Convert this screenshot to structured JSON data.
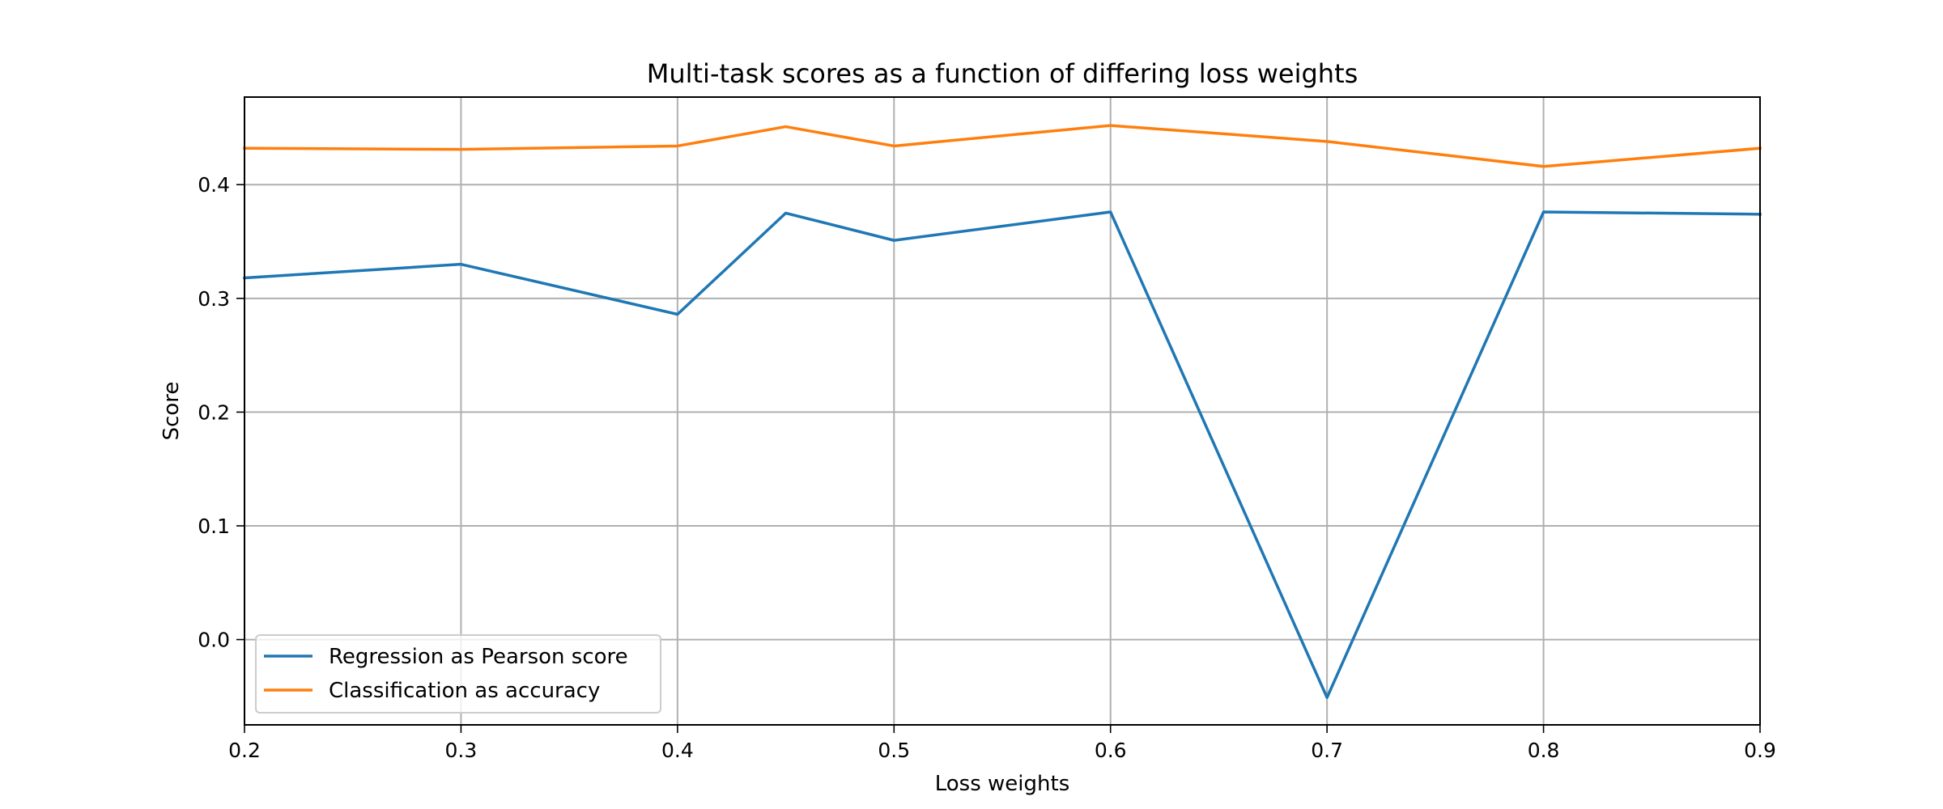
{
  "chart_data": {
    "type": "line",
    "title": "Multi-task scores as a function of differing loss weights",
    "xlabel": "Loss weights",
    "ylabel": "Score",
    "x": [
      0.2,
      0.3,
      0.4,
      0.45,
      0.5,
      0.6,
      0.7,
      0.8,
      0.9
    ],
    "xlim": [
      0.2,
      0.9
    ],
    "ylim": [
      -0.075,
      0.477
    ],
    "xticks": [
      0.2,
      0.3,
      0.4,
      0.5,
      0.6,
      0.7,
      0.8,
      0.9
    ],
    "xtick_labels": [
      "0.2",
      "0.3",
      "0.4",
      "0.5",
      "0.6",
      "0.7",
      "0.8",
      "0.9"
    ],
    "yticks": [
      0.0,
      0.1,
      0.2,
      0.3,
      0.4
    ],
    "ytick_labels": [
      "0.0",
      "0.1",
      "0.2",
      "0.3",
      "0.4"
    ],
    "grid": true,
    "legend_position": "lower-left",
    "series": [
      {
        "name": "Regression as Pearson score",
        "color": "#1f77b4",
        "values": [
          0.318,
          0.33,
          0.286,
          0.375,
          0.351,
          0.376,
          -0.051,
          0.376,
          0.374
        ]
      },
      {
        "name": "Classification as accuracy",
        "color": "#ff7f0e",
        "values": [
          0.432,
          0.431,
          0.434,
          0.451,
          0.434,
          0.452,
          0.438,
          0.416,
          0.432
        ]
      }
    ]
  }
}
